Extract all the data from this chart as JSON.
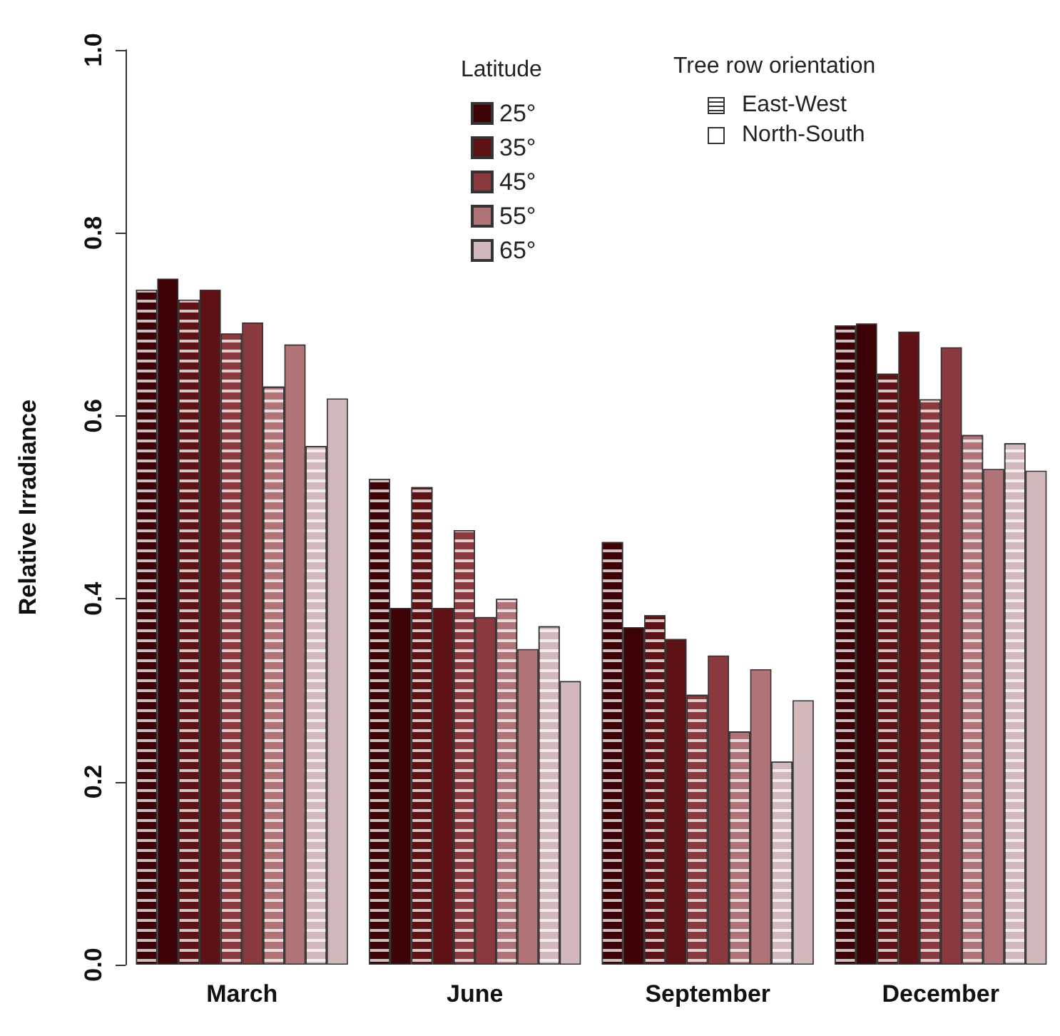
{
  "chart_data": {
    "type": "bar",
    "ylabel": "Relative Irradiance",
    "categories": [
      "March",
      "June",
      "September",
      "December"
    ],
    "ylim": [
      0,
      1
    ],
    "yticks": [
      {
        "value": 0,
        "label": "0.0"
      },
      0.2,
      0.4,
      0.6,
      0.8,
      {
        "value": 1,
        "label": "1.0"
      }
    ],
    "grid": false,
    "legend": "top",
    "legend_title": "Latitude",
    "annotations": [
      "Tree row orientation",
      "East-West",
      "North-South"
    ],
    "series": [
      {
        "color": "#3d0306",
        "values": [
          0.738,
          0.531,
          0.462,
          0.699
        ]
      },
      {
        "name": "25°",
        "color": "#3d0306",
        "values": [
          0.75,
          0.39,
          0.369,
          0.701
        ]
      },
      {
        "color": "#5e1216",
        "values": [
          0.727,
          0.522,
          0.382,
          0.646
        ]
      },
      {
        "name": "35°",
        "color": "#5e1216",
        "values": [
          0.738,
          0.39,
          0.356,
          0.692
        ]
      },
      {
        "color": "#8a3a3e",
        "values": [
          0.69,
          0.475,
          0.295,
          0.618
        ]
      },
      {
        "name": "45°",
        "color": "#8a3a3e",
        "values": [
          0.702,
          0.38,
          0.338,
          0.675
        ]
      },
      {
        "color": "#b07478",
        "values": [
          0.632,
          0.4,
          0.255,
          0.579
        ]
      },
      {
        "name": "55°",
        "color": "#b07478",
        "values": [
          0.678,
          0.345,
          0.323,
          0.542
        ]
      },
      {
        "color": "#d2b8bb",
        "values": [
          0.567,
          0.37,
          0.222,
          0.57
        ]
      },
      {
        "name": "65°",
        "color": "#d2b8bb",
        "values": [
          0.619,
          0.31,
          0.289,
          0.54
        ]
      }
    ]
  }
}
